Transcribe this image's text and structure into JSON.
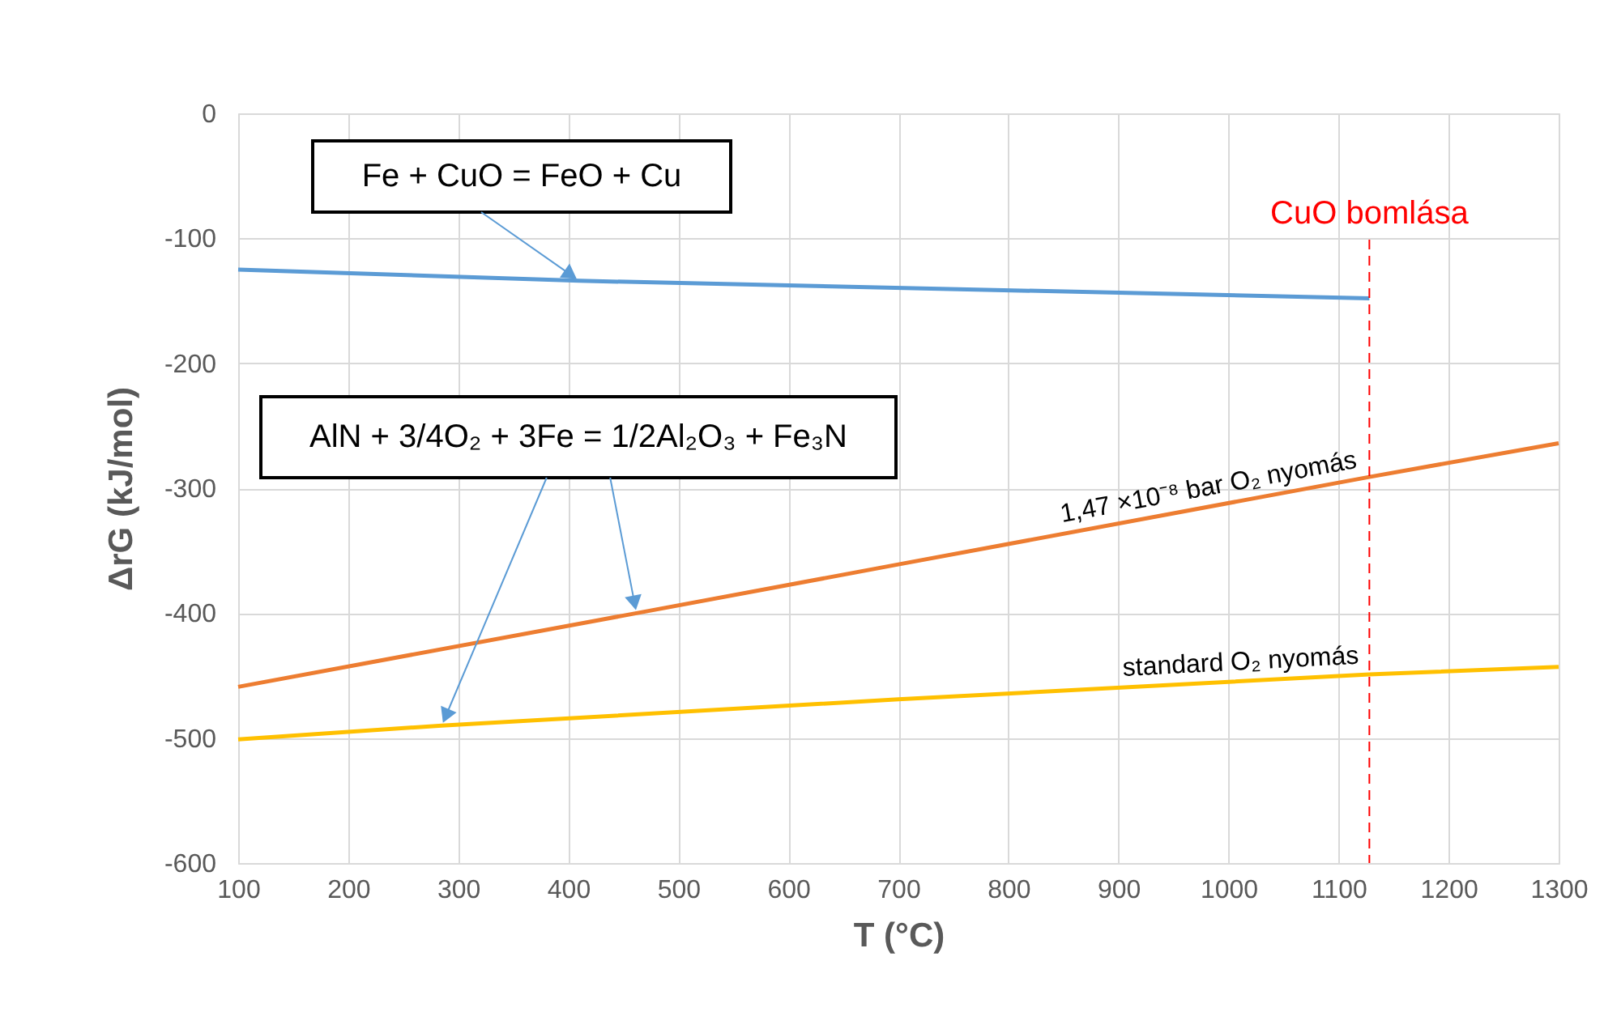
{
  "chart_data": {
    "type": "line",
    "xlabel": "T (°C)",
    "ylabel": "ΔrG (kJ/mol)",
    "xlim": [
      100,
      1300
    ],
    "xticks": [
      100,
      200,
      300,
      400,
      500,
      600,
      700,
      800,
      900,
      1000,
      1100,
      1200,
      1300
    ],
    "ylim": [
      -600,
      0
    ],
    "yticks": [
      -600,
      -500,
      -400,
      -300,
      -200,
      -100,
      0
    ],
    "grid": true,
    "marker": "none",
    "line_style": "solid",
    "series": [
      {
        "color": "#5b9bd5",
        "x": [
          100,
          410,
          1128
        ],
        "values": [
          -125,
          -134,
          -148
        ]
      },
      {
        "name": "1,47 ×10⁻⁸ bar O₂ nyomás",
        "color": "#ed7d31",
        "x": [
          100,
          462,
          700,
          1128,
          1300
        ],
        "values": [
          -459,
          -400,
          -361,
          -291,
          -264
        ]
      },
      {
        "name": "standard O₂ nyomás",
        "color": "#ffc000",
        "x": [
          100,
          285,
          700,
          1128,
          1300
        ],
        "values": [
          -501,
          -490,
          -469,
          -449,
          -443
        ]
      }
    ],
    "ref_lines": [
      {
        "axis": "x",
        "value": 1128,
        "label": "CuO bomlása",
        "color": "#ff0000",
        "line_style": "dashed"
      }
    ],
    "annotations": [
      {
        "text": "Fe + CuO = FeO + Cu",
        "x": 410,
        "y": -134
      },
      {
        "text": "AlN + 3/4O₂ + 3Fe = 1/2Al₂O₃ + Fe₃N",
        "x": 462,
        "y": -400
      }
    ]
  }
}
